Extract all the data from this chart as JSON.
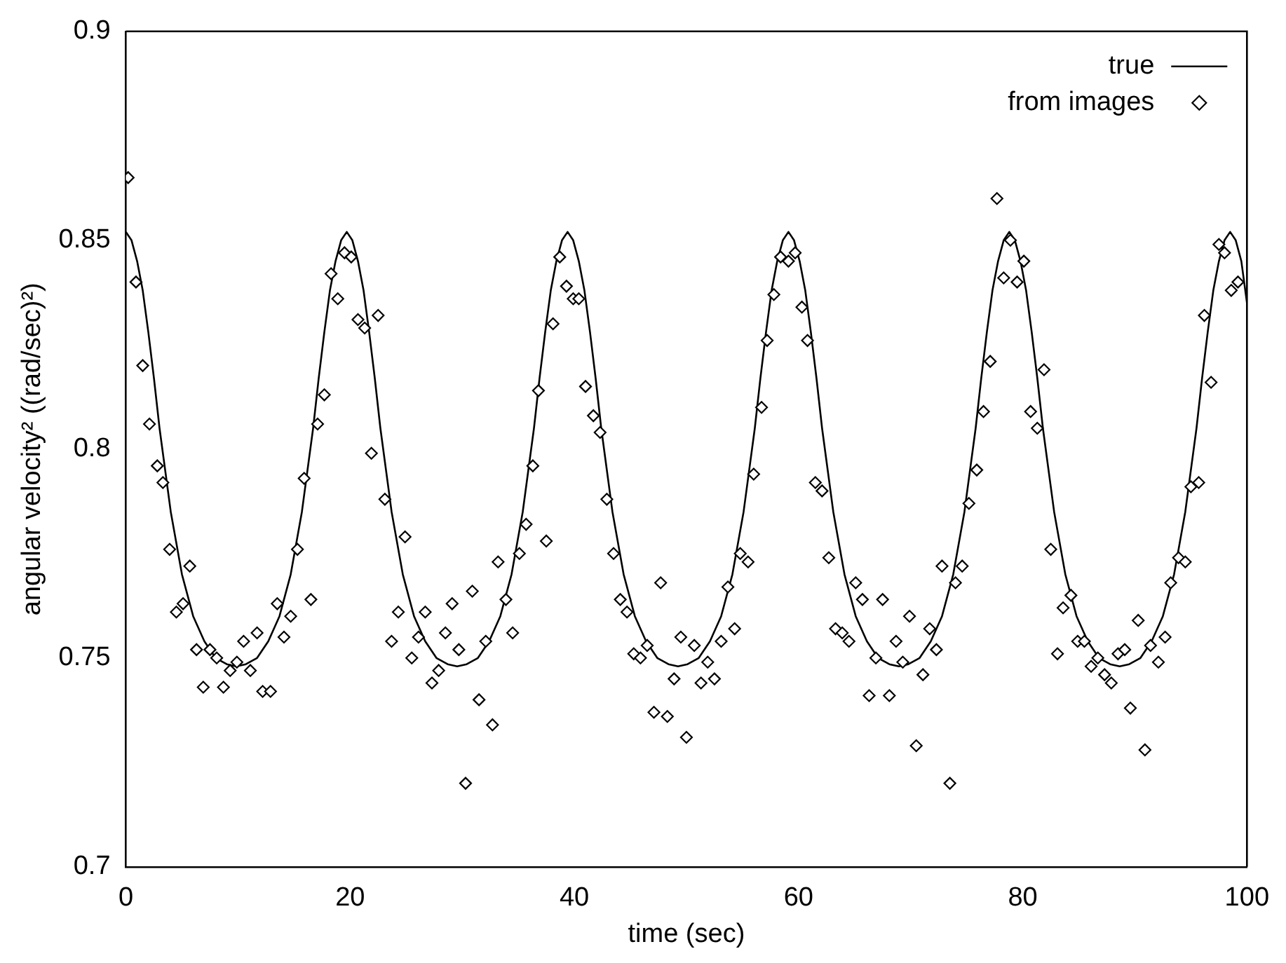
{
  "chart_data": {
    "type": "scatter",
    "xlabel": "time (sec)",
    "ylabel": "angular velocity² ((rad/sec)²)",
    "xlim": [
      0,
      100
    ],
    "ylim": [
      0.7,
      0.9
    ],
    "xticks": [
      0,
      20,
      40,
      60,
      80,
      100
    ],
    "yticks": [
      0.7,
      0.75,
      0.8,
      0.85,
      0.9
    ],
    "grid": false,
    "legend": "top right",
    "series": [
      {
        "name": "true",
        "type": "line",
        "color": "#000000",
        "marker": "none",
        "line_style": "solid",
        "x": [
          0,
          0.5,
          1,
          1.5,
          2,
          2.5,
          3,
          4,
          5,
          6,
          7,
          8,
          9,
          9.85,
          10.7,
          11.7,
          12.7,
          13.7,
          14.7,
          15.7,
          16.7,
          17.2,
          17.7,
          18.2,
          18.7,
          19.2,
          19.7,
          20.2,
          20.7,
          21.2,
          21.7,
          22.2,
          22.7,
          23.7,
          24.7,
          25.7,
          26.7,
          27.7,
          28.7,
          29.55,
          30.4,
          31.4,
          32.4,
          33.4,
          34.4,
          35.4,
          36.4,
          36.9,
          37.4,
          37.9,
          38.4,
          38.9,
          39.4,
          39.9,
          40.4,
          40.9,
          41.4,
          41.9,
          42.4,
          43.4,
          44.4,
          45.4,
          46.4,
          47.4,
          48.4,
          49.25,
          50.1,
          51.1,
          52.1,
          53.1,
          54.1,
          55.1,
          56.1,
          56.6,
          57.1,
          57.6,
          58.1,
          58.6,
          59.1,
          59.6,
          60.1,
          60.6,
          61.1,
          61.6,
          62.1,
          63.1,
          64.1,
          65.1,
          66.1,
          67.1,
          68.1,
          68.95,
          69.8,
          70.8,
          71.8,
          72.8,
          73.8,
          74.8,
          75.8,
          76.3,
          76.8,
          77.3,
          77.8,
          78.3,
          78.8,
          79.3,
          79.8,
          80.3,
          80.8,
          81.3,
          81.8,
          82.8,
          83.8,
          84.8,
          85.8,
          86.8,
          87.8,
          88.65,
          89.5,
          90.5,
          91.5,
          92.5,
          93.5,
          94.5,
          95.5,
          96,
          96.5,
          97,
          97.5,
          98,
          98.5,
          99,
          99.5,
          100
        ],
        "values": [
          0.852,
          0.85,
          0.845,
          0.838,
          0.828,
          0.817,
          0.805,
          0.785,
          0.77,
          0.76,
          0.754,
          0.75,
          0.7485,
          0.748,
          0.7485,
          0.75,
          0.754,
          0.76,
          0.77,
          0.785,
          0.805,
          0.817,
          0.828,
          0.838,
          0.845,
          0.85,
          0.852,
          0.85,
          0.845,
          0.838,
          0.828,
          0.817,
          0.805,
          0.785,
          0.77,
          0.76,
          0.754,
          0.75,
          0.7485,
          0.748,
          0.7485,
          0.75,
          0.754,
          0.76,
          0.77,
          0.785,
          0.805,
          0.817,
          0.828,
          0.838,
          0.845,
          0.85,
          0.852,
          0.85,
          0.845,
          0.838,
          0.828,
          0.817,
          0.805,
          0.785,
          0.77,
          0.76,
          0.754,
          0.75,
          0.7485,
          0.748,
          0.7485,
          0.75,
          0.754,
          0.76,
          0.77,
          0.785,
          0.805,
          0.817,
          0.828,
          0.838,
          0.845,
          0.85,
          0.852,
          0.85,
          0.845,
          0.838,
          0.828,
          0.817,
          0.805,
          0.785,
          0.77,
          0.76,
          0.754,
          0.75,
          0.7485,
          0.748,
          0.7485,
          0.75,
          0.754,
          0.76,
          0.77,
          0.785,
          0.805,
          0.817,
          0.828,
          0.838,
          0.845,
          0.85,
          0.852,
          0.85,
          0.845,
          0.838,
          0.828,
          0.817,
          0.805,
          0.785,
          0.77,
          0.76,
          0.754,
          0.75,
          0.7485,
          0.748,
          0.7485,
          0.75,
          0.754,
          0.76,
          0.77,
          0.785,
          0.805,
          0.817,
          0.828,
          0.838,
          0.845,
          0.85,
          0.852,
          0.85,
          0.845,
          0.835
        ]
      },
      {
        "name": "from images",
        "type": "scatter",
        "color": "#000000",
        "marker": "diamond",
        "x": [
          0.2,
          0.9,
          1.5,
          2.1,
          2.8,
          3.3,
          3.9,
          4.5,
          5.1,
          5.7,
          6.3,
          6.9,
          7.5,
          8.1,
          8.7,
          9.3,
          9.9,
          10.5,
          11.1,
          11.7,
          12.2,
          12.9,
          13.5,
          14.1,
          14.7,
          15.3,
          15.9,
          16.5,
          17.1,
          17.7,
          18.3,
          18.9,
          19.5,
          20.1,
          20.7,
          21.3,
          21.9,
          22.5,
          23.1,
          23.7,
          24.3,
          24.9,
          25.5,
          26.1,
          26.7,
          27.3,
          27.9,
          28.5,
          29.1,
          29.7,
          30.3,
          30.9,
          31.5,
          32.1,
          32.7,
          33.2,
          33.9,
          34.5,
          35.1,
          35.7,
          36.3,
          36.8,
          37.5,
          38.1,
          38.7,
          39.3,
          39.9,
          40.4,
          41.0,
          41.7,
          42.3,
          42.9,
          43.5,
          44.1,
          44.7,
          45.3,
          45.9,
          46.5,
          47.1,
          47.7,
          48.3,
          48.9,
          49.5,
          50.0,
          50.7,
          51.3,
          51.9,
          52.5,
          53.1,
          53.7,
          54.3,
          54.8,
          55.5,
          56.0,
          56.7,
          57.2,
          57.8,
          58.4,
          59.1,
          59.7,
          60.3,
          60.8,
          61.5,
          62.1,
          62.7,
          63.3,
          63.9,
          64.5,
          65.1,
          65.7,
          66.3,
          66.9,
          67.5,
          68.1,
          68.7,
          69.3,
          69.9,
          70.5,
          71.1,
          71.7,
          72.3,
          72.8,
          73.5,
          74.0,
          74.6,
          75.2,
          75.9,
          76.5,
          77.1,
          77.7,
          78.3,
          78.9,
          79.5,
          80.1,
          80.7,
          81.3,
          81.9,
          82.5,
          83.1,
          83.6,
          84.3,
          84.9,
          85.5,
          86.1,
          86.7,
          87.3,
          87.9,
          88.5,
          89.1,
          89.6,
          90.3,
          90.9,
          91.4,
          92.1,
          92.7,
          93.2,
          93.9,
          94.5,
          95.0,
          95.7,
          96.2,
          96.8,
          97.5,
          98.0,
          98.6,
          99.2
        ],
        "values": [
          0.865,
          0.84,
          0.82,
          0.806,
          0.796,
          0.792,
          0.776,
          0.761,
          0.763,
          0.772,
          0.752,
          0.743,
          0.752,
          0.75,
          0.743,
          0.747,
          0.749,
          0.754,
          0.747,
          0.756,
          0.742,
          0.742,
          0.763,
          0.755,
          0.76,
          0.776,
          0.793,
          0.764,
          0.806,
          0.813,
          0.842,
          0.836,
          0.847,
          0.846,
          0.831,
          0.829,
          0.799,
          0.832,
          0.788,
          0.754,
          0.761,
          0.779,
          0.75,
          0.755,
          0.761,
          0.744,
          0.747,
          0.756,
          0.763,
          0.752,
          0.72,
          0.766,
          0.74,
          0.754,
          0.734,
          0.773,
          0.764,
          0.756,
          0.775,
          0.782,
          0.796,
          0.814,
          0.778,
          0.83,
          0.846,
          0.839,
          0.836,
          0.836,
          0.815,
          0.808,
          0.804,
          0.788,
          0.775,
          0.764,
          0.761,
          0.751,
          0.75,
          0.753,
          0.737,
          0.768,
          0.736,
          0.745,
          0.755,
          0.731,
          0.753,
          0.744,
          0.749,
          0.745,
          0.754,
          0.767,
          0.757,
          0.775,
          0.773,
          0.794,
          0.81,
          0.826,
          0.837,
          0.846,
          0.845,
          0.847,
          0.834,
          0.826,
          0.792,
          0.79,
          0.774,
          0.757,
          0.756,
          0.754,
          0.768,
          0.764,
          0.741,
          0.75,
          0.764,
          0.741,
          0.754,
          0.749,
          0.76,
          0.729,
          0.746,
          0.757,
          0.752,
          0.772,
          0.72,
          0.768,
          0.772,
          0.787,
          0.795,
          0.809,
          0.821,
          0.86,
          0.841,
          0.85,
          0.84,
          0.845,
          0.809,
          0.805,
          0.819,
          0.776,
          0.751,
          0.762,
          0.765,
          0.754,
          0.754,
          0.748,
          0.75,
          0.746,
          0.744,
          0.751,
          0.752,
          0.738,
          0.759,
          0.728,
          0.753,
          0.749,
          0.755,
          0.768,
          0.774,
          0.773,
          0.791,
          0.792,
          0.832,
          0.816,
          0.849,
          0.847,
          0.838,
          0.84
        ]
      }
    ]
  }
}
